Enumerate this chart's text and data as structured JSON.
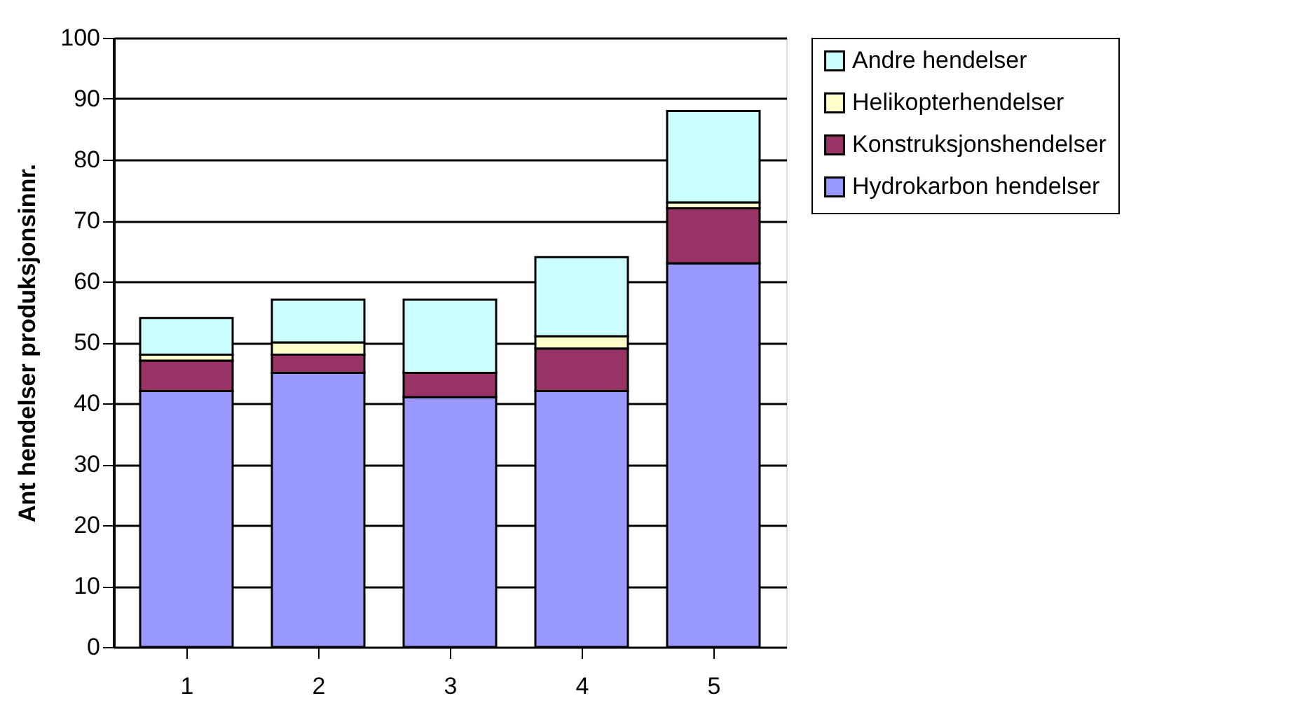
{
  "chart_data": {
    "type": "bar",
    "stacked": true,
    "ylabel": "Ant hendelser produksjonsinnr.",
    "categories": [
      "1",
      "2",
      "3",
      "4",
      "5"
    ],
    "series": [
      {
        "name": "Hydrokarbon hendelser",
        "color": "#9999ff",
        "values": [
          42,
          45,
          41,
          42,
          63
        ]
      },
      {
        "name": "Konstruksjonshendelser",
        "color": "#993366",
        "values": [
          5,
          3,
          4,
          7,
          9
        ]
      },
      {
        "name": "Helikopterhendelser",
        "color": "#ffffcc",
        "values": [
          1,
          2,
          0,
          2,
          1
        ]
      },
      {
        "name": "Andre hendelser",
        "color": "#ccffff",
        "values": [
          6,
          7,
          12,
          13,
          15
        ]
      }
    ],
    "ylim": [
      0,
      100
    ],
    "yticks": [
      0,
      10,
      20,
      30,
      40,
      50,
      60,
      70,
      80,
      90,
      100
    ],
    "grid": "y",
    "legend": "right"
  }
}
